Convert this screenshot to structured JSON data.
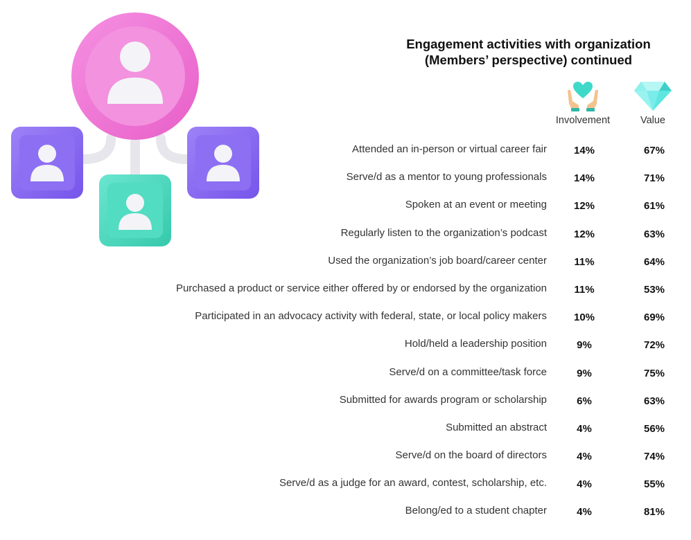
{
  "chart_data": {
    "type": "table",
    "title_lines": [
      "Engagement activities with organization",
      "(Members’ perspective) continued"
    ],
    "columns": [
      {
        "label": "Involvement",
        "icon": "hands-heart-icon",
        "color": "#3ed9c9"
      },
      {
        "label": "Value",
        "icon": "diamond-icon",
        "color": "#5ee6e0"
      }
    ],
    "rows": [
      {
        "label": "Attended an in-person or virtual career fair",
        "involvement": "14%",
        "value": "67%"
      },
      {
        "label": "Serve/d as a mentor to young professionals",
        "involvement": "14%",
        "value": "71%"
      },
      {
        "label": "Spoken at an event or meeting",
        "involvement": "12%",
        "value": "61%"
      },
      {
        "label": "Regularly listen to the organization’s podcast",
        "involvement": "12%",
        "value": "63%"
      },
      {
        "label": "Used the organization’s job board/career center",
        "involvement": "11%",
        "value": "64%"
      },
      {
        "label": "Purchased a product or service either offered by or endorsed by the organization",
        "involvement": "11%",
        "value": "53%"
      },
      {
        "label": "Participated in an advocacy activity with federal, state, or local policy makers",
        "involvement": "10%",
        "value": "69%"
      },
      {
        "label": "Hold/held a leadership position",
        "involvement": "9%",
        "value": "72%"
      },
      {
        "label": "Serve/d on a committee/task force",
        "involvement": "9%",
        "value": "75%"
      },
      {
        "label": "Submitted for awards program or scholarship",
        "involvement": "6%",
        "value": "63%"
      },
      {
        "label": "Submitted an abstract",
        "involvement": "4%",
        "value": "56%"
      },
      {
        "label": "Serve/d on the board of directors",
        "involvement": "4%",
        "value": "74%"
      },
      {
        "label": "Serve/d as a judge for an award, contest, scholarship, etc.",
        "involvement": "4%",
        "value": "55%"
      },
      {
        "label": "Belong/ed to a student chapter",
        "involvement": "4%",
        "value": "81%"
      }
    ]
  },
  "illustration": {
    "icon": "network-people-icon",
    "colors": {
      "center": "#f07ad6",
      "sides": "#8a6cf2",
      "bottom": "#4fd9bf"
    }
  }
}
